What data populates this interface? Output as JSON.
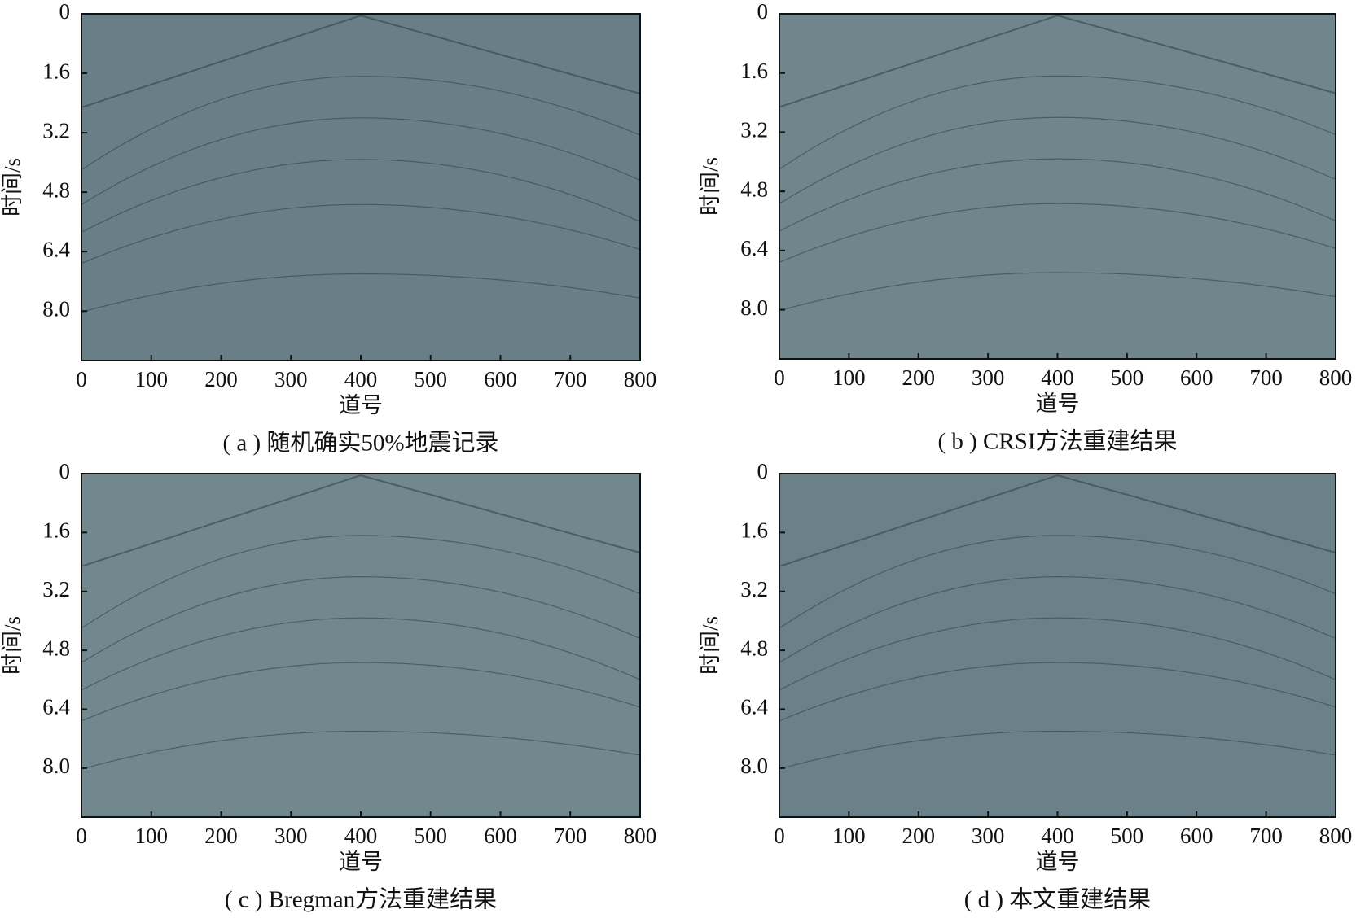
{
  "chart_data": [
    {
      "type": "image",
      "caption": "( a ) 随机确实50%地震记录",
      "xlabel": "道号",
      "ylabel": "时间/s",
      "color": "#687f87",
      "xlim": [
        0,
        800
      ],
      "xticks": [
        0,
        100,
        200,
        300,
        400,
        500,
        600,
        700,
        800
      ],
      "ylim": [
        0,
        9.33
      ],
      "yticks": [
        0,
        1.6,
        3.2,
        4.8,
        6.4,
        {
          "value": 8,
          "label": "8.0"
        }
      ]
    },
    {
      "type": "image",
      "caption": "( b ) CRSI方法重建结果",
      "xlabel": "道号",
      "ylabel": "时间/s",
      "color": "#6f868d",
      "xlim": [
        0,
        800
      ],
      "xticks": [
        0,
        100,
        200,
        300,
        400,
        500,
        600,
        700,
        800
      ],
      "ylim": [
        0,
        9.33
      ],
      "yticks": [
        0,
        1.6,
        3.2,
        4.8,
        6.4,
        {
          "value": 8,
          "label": "8.0"
        }
      ]
    },
    {
      "type": "image",
      "caption": "( c ) Bregman方法重建结果",
      "xlabel": "道号",
      "ylabel": "时间/s",
      "color": "#72888f",
      "xlim": [
        0,
        800
      ],
      "xticks": [
        0,
        100,
        200,
        300,
        400,
        500,
        600,
        700,
        800
      ],
      "ylim": [
        0,
        9.33
      ],
      "yticks": [
        0,
        1.6,
        3.2,
        4.8,
        6.4,
        {
          "value": 8,
          "label": "8.0"
        }
      ]
    },
    {
      "type": "image",
      "caption": "( d ) 本文重建结果",
      "xlabel": "道号",
      "ylabel": "时间/s",
      "color": "#6b8189",
      "xlim": [
        0,
        800
      ],
      "xticks": [
        0,
        100,
        200,
        300,
        400,
        500,
        600,
        700,
        800
      ],
      "ylim": [
        0,
        9.33
      ],
      "yticks": [
        0,
        1.6,
        3.2,
        4.8,
        6.4,
        {
          "value": 8,
          "label": "8.0"
        }
      ]
    }
  ]
}
